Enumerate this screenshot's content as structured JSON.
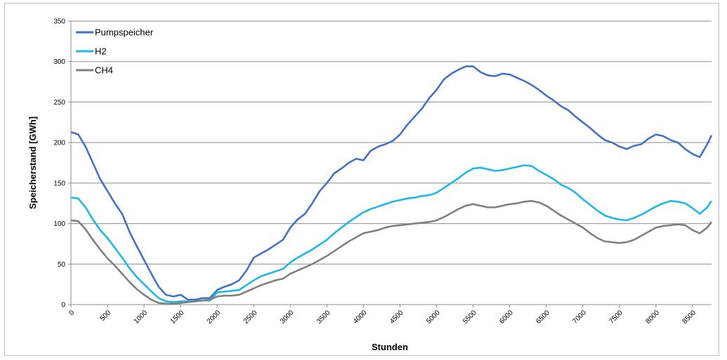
{
  "chart_data": {
    "type": "line",
    "xlabel": "Stunden",
    "ylabel": "Speicherstand [GWh]",
    "xlim": [
      0,
      8760
    ],
    "ylim": [
      0,
      350
    ],
    "x_ticks": [
      "0",
      "500",
      "1000",
      "1500",
      "2000",
      "2500",
      "3000",
      "3500",
      "4000",
      "4500",
      "5000",
      "5500",
      "6000",
      "6500",
      "7000",
      "7500",
      "8000",
      "8500"
    ],
    "y_ticks": [
      "0",
      "50",
      "100",
      "150",
      "200",
      "250",
      "300",
      "350"
    ],
    "grid": "horizontal",
    "legend_position": "top-left",
    "series": [
      {
        "name": "Pumpspeicher",
        "color": "#4472c4",
        "x": [
          0,
          100,
          200,
          300,
          400,
          500,
          600,
          700,
          800,
          900,
          1000,
          1100,
          1200,
          1300,
          1400,
          1500,
          1600,
          1700,
          1800,
          1900,
          2000,
          2100,
          2200,
          2300,
          2400,
          2500,
          2600,
          2700,
          2800,
          2900,
          3000,
          3100,
          3200,
          3300,
          3400,
          3500,
          3600,
          3700,
          3800,
          3900,
          4000,
          4100,
          4200,
          4300,
          4400,
          4500,
          4600,
          4700,
          4800,
          4900,
          5000,
          5100,
          5200,
          5300,
          5400,
          5500,
          5600,
          5700,
          5800,
          5900,
          6000,
          6100,
          6200,
          6300,
          6400,
          6500,
          6600,
          6700,
          6800,
          6900,
          7000,
          7100,
          7200,
          7300,
          7400,
          7500,
          7600,
          7700,
          7800,
          7900,
          8000,
          8100,
          8200,
          8300,
          8400,
          8500,
          8600,
          8700,
          8760
        ],
        "values": [
          213,
          210,
          195,
          175,
          155,
          140,
          125,
          112,
          90,
          72,
          55,
          38,
          22,
          12,
          10,
          12,
          6,
          6,
          8,
          8,
          18,
          22,
          25,
          30,
          42,
          58,
          63,
          68,
          74,
          80,
          95,
          105,
          112,
          125,
          140,
          150,
          162,
          168,
          175,
          180,
          178,
          190,
          195,
          198,
          202,
          210,
          222,
          232,
          242,
          255,
          265,
          278,
          285,
          290,
          294,
          294,
          287,
          283,
          282,
          285,
          284,
          280,
          276,
          271,
          265,
          258,
          252,
          245,
          240,
          232,
          225,
          218,
          210,
          203,
          200,
          195,
          192,
          196,
          198,
          205,
          210,
          208,
          203,
          200,
          192,
          186,
          182,
          198,
          209
        ]
      },
      {
        "name": "H2",
        "color": "#1fb6e8",
        "x": [
          0,
          100,
          200,
          300,
          400,
          500,
          600,
          700,
          800,
          900,
          1000,
          1100,
          1200,
          1300,
          1400,
          1500,
          1600,
          1700,
          1800,
          1900,
          2000,
          2100,
          2200,
          2300,
          2400,
          2500,
          2600,
          2700,
          2800,
          2900,
          3000,
          3100,
          3200,
          3300,
          3400,
          3500,
          3600,
          3700,
          3800,
          3900,
          4000,
          4100,
          4200,
          4300,
          4400,
          4500,
          4600,
          4700,
          4800,
          4900,
          5000,
          5100,
          5200,
          5300,
          5400,
          5500,
          5600,
          5700,
          5800,
          5900,
          6000,
          6100,
          6200,
          6300,
          6400,
          6500,
          6600,
          6700,
          6800,
          6900,
          7000,
          7100,
          7200,
          7300,
          7400,
          7500,
          7600,
          7700,
          7800,
          7900,
          8000,
          8100,
          8200,
          8300,
          8400,
          8500,
          8600,
          8700,
          8760
        ],
        "values": [
          132,
          131,
          120,
          105,
          92,
          82,
          70,
          58,
          45,
          34,
          25,
          16,
          8,
          4,
          3,
          4,
          4,
          4,
          5,
          5,
          15,
          16,
          17,
          18,
          24,
          30,
          35,
          38,
          41,
          44,
          52,
          58,
          63,
          68,
          74,
          80,
          88,
          95,
          102,
          108,
          114,
          118,
          121,
          124,
          127,
          129,
          131,
          132,
          134,
          135,
          138,
          144,
          150,
          156,
          163,
          168,
          169,
          167,
          165,
          166,
          168,
          170,
          172,
          171,
          165,
          160,
          155,
          148,
          144,
          138,
          130,
          123,
          116,
          110,
          107,
          105,
          104,
          107,
          111,
          116,
          121,
          125,
          128,
          127,
          125,
          119,
          112,
          120,
          128
        ]
      },
      {
        "name": "CH4",
        "color": "#808080",
        "x": [
          0,
          100,
          200,
          300,
          400,
          500,
          600,
          700,
          800,
          900,
          1000,
          1100,
          1200,
          1300,
          1400,
          1500,
          1600,
          1700,
          1800,
          1900,
          2000,
          2100,
          2200,
          2300,
          2400,
          2500,
          2600,
          2700,
          2800,
          2900,
          3000,
          3100,
          3200,
          3300,
          3400,
          3500,
          3600,
          3700,
          3800,
          3900,
          4000,
          4100,
          4200,
          4300,
          4400,
          4500,
          4600,
          4700,
          4800,
          4900,
          5000,
          5100,
          5200,
          5300,
          5400,
          5500,
          5600,
          5700,
          5800,
          5900,
          6000,
          6100,
          6200,
          6300,
          6400,
          6500,
          6600,
          6700,
          6800,
          6900,
          7000,
          7100,
          7200,
          7300,
          7400,
          7500,
          7600,
          7700,
          7800,
          7900,
          8000,
          8100,
          8200,
          8300,
          8400,
          8500,
          8600,
          8700,
          8760
        ],
        "values": [
          104,
          103,
          93,
          80,
          68,
          57,
          48,
          38,
          28,
          19,
          12,
          6,
          2,
          1,
          1,
          2,
          3,
          4,
          5,
          6,
          10,
          11,
          11,
          12,
          16,
          20,
          24,
          27,
          30,
          32,
          38,
          42,
          46,
          50,
          55,
          60,
          66,
          72,
          78,
          83,
          88,
          90,
          92,
          95,
          97,
          98,
          99,
          100,
          101,
          102,
          104,
          108,
          113,
          118,
          122,
          124,
          122,
          120,
          120,
          122,
          124,
          125,
          127,
          128,
          126,
          122,
          116,
          110,
          105,
          100,
          95,
          88,
          82,
          78,
          77,
          76,
          77,
          80,
          85,
          90,
          95,
          97,
          98,
          99,
          98,
          92,
          88,
          95,
          102
        ]
      }
    ]
  }
}
